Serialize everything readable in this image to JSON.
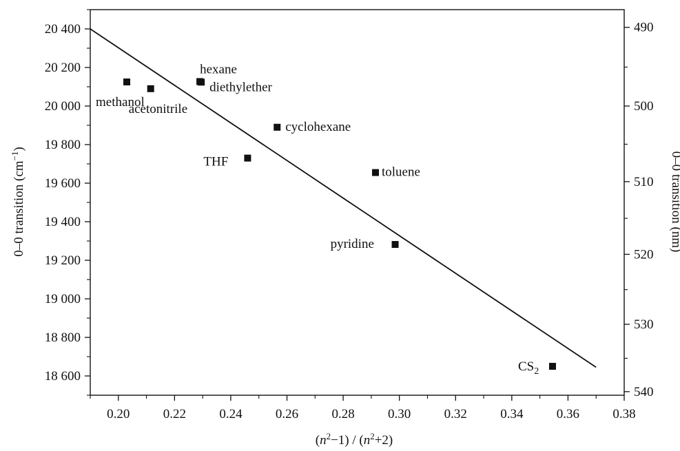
{
  "chart_data": {
    "type": "scatter",
    "xlabel": "(n2−1) / (n2+2)",
    "ylabel": "0–0 transition (cm−1)",
    "y2label": "0–0 transition (nm)",
    "xlim": [
      0.19,
      0.38
    ],
    "ylim": [
      18500,
      20500
    ],
    "x_ticks": [
      "0.20",
      "0.22",
      "0.24",
      "0.26",
      "0.28",
      "0.30",
      "0.32",
      "0.34",
      "0.36",
      "0.38"
    ],
    "y_ticks": [
      "18 600",
      "18 800",
      "19 000",
      "19 200",
      "19 400",
      "19 600",
      "19 800",
      "20 000",
      "20 200",
      "20 400"
    ],
    "y2_ticks": [
      "490",
      "500",
      "510",
      "520",
      "530",
      "540"
    ],
    "points": [
      {
        "label": "methanol",
        "x": 0.203,
        "y": 20125
      },
      {
        "label": "acetonitrile",
        "x": 0.2115,
        "y": 20090
      },
      {
        "label": "hexane",
        "x": 0.229,
        "y": 20127
      },
      {
        "label": "diethylether",
        "x": 0.2295,
        "y": 20124
      },
      {
        "label": "THF",
        "x": 0.246,
        "y": 19730
      },
      {
        "label": "cyclohexane",
        "x": 0.2565,
        "y": 19890
      },
      {
        "label": "toluene",
        "x": 0.2915,
        "y": 19655
      },
      {
        "label": "pyridine",
        "x": 0.2985,
        "y": 19282
      },
      {
        "label": "CS2",
        "x": 0.3545,
        "y": 18650
      }
    ],
    "fit_line": {
      "x": [
        0.19,
        0.37
      ],
      "y": [
        20400,
        18645
      ]
    },
    "grid": false,
    "legend": "none"
  }
}
